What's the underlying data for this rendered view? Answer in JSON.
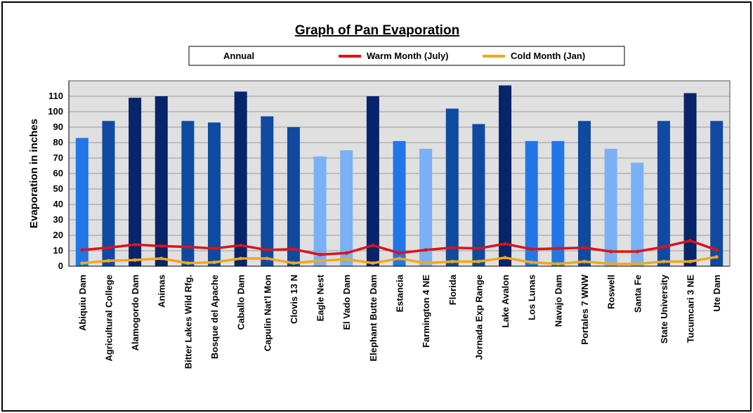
{
  "chart_data": {
    "type": "bar",
    "title": "Graph of Pan Evaporation",
    "xlabel": "",
    "ylabel": "Evaporation  in inches",
    "ylim": [
      0,
      120
    ],
    "yticks": [
      0,
      10,
      20,
      30,
      40,
      50,
      60,
      70,
      80,
      90,
      100,
      110
    ],
    "grid": true,
    "legend_position": "top",
    "categories": [
      "Abiquiu Dam",
      "Agricultural College",
      "Alamogordo Dam",
      "Animas",
      "Bitter Lakes Wild Rfg.",
      "Bosque del Apache",
      "Caballo Dam",
      "Capulin Nat'l Mon",
      "Clovis 13 N",
      "Eagle Nest",
      "El Vado Dam",
      "Elephant Butte Dam",
      "Estancia",
      "Farmington 4 NE",
      "Florida",
      "Jornada Exp Range",
      "Lake Avalon",
      "Los Lunas",
      "Navajo Dam",
      "Portales 7 WNW",
      "Roswell",
      "Santa Fe",
      "State University",
      "Tucumcari 3 NE",
      "Ute Dam"
    ],
    "series": [
      {
        "name": "Annual",
        "kind": "bar",
        "values": [
          83,
          94,
          109,
          110,
          94,
          93,
          113,
          97,
          90,
          71,
          75,
          110,
          81,
          76,
          102,
          92,
          117,
          81,
          81,
          94,
          76,
          67,
          94,
          112,
          94
        ]
      },
      {
        "name": "Warm Month (July)",
        "kind": "line",
        "color": "#d9141b",
        "values": [
          10.5,
          12,
          14,
          13,
          12.5,
          11.5,
          13.5,
          10.5,
          11,
          7.5,
          8.5,
          13.5,
          8.5,
          10.5,
          12,
          11.5,
          14.5,
          11,
          11.5,
          12,
          9.5,
          9.5,
          12.5,
          16.5,
          10.5
        ]
      },
      {
        "name": "Cold Month (Jan)",
        "kind": "line",
        "color": "#f0a81e",
        "values": [
          2,
          3.5,
          4,
          5,
          2,
          2.5,
          5,
          5,
          2,
          3.5,
          4.5,
          2,
          5,
          2,
          3,
          3,
          5.5,
          2.5,
          1.5,
          3,
          1.5,
          1.5,
          3,
          3,
          6
        ]
      }
    ],
    "bar_colors": [
      "#2176e8",
      "#0f4aa0",
      "#08246a",
      "#08246a",
      "#0f4aa0",
      "#0f4aa0",
      "#08246a",
      "#0f4aa0",
      "#0f4aa0",
      "#7ab0f5",
      "#7ab0f5",
      "#08246a",
      "#2176e8",
      "#7ab0f5",
      "#0f4aa0",
      "#0f4aa0",
      "#08246a",
      "#2176e8",
      "#2176e8",
      "#0f4aa0",
      "#7ab0f5",
      "#7ab0f5",
      "#0f4aa0",
      "#08246a",
      "#0f4aa0"
    ]
  }
}
